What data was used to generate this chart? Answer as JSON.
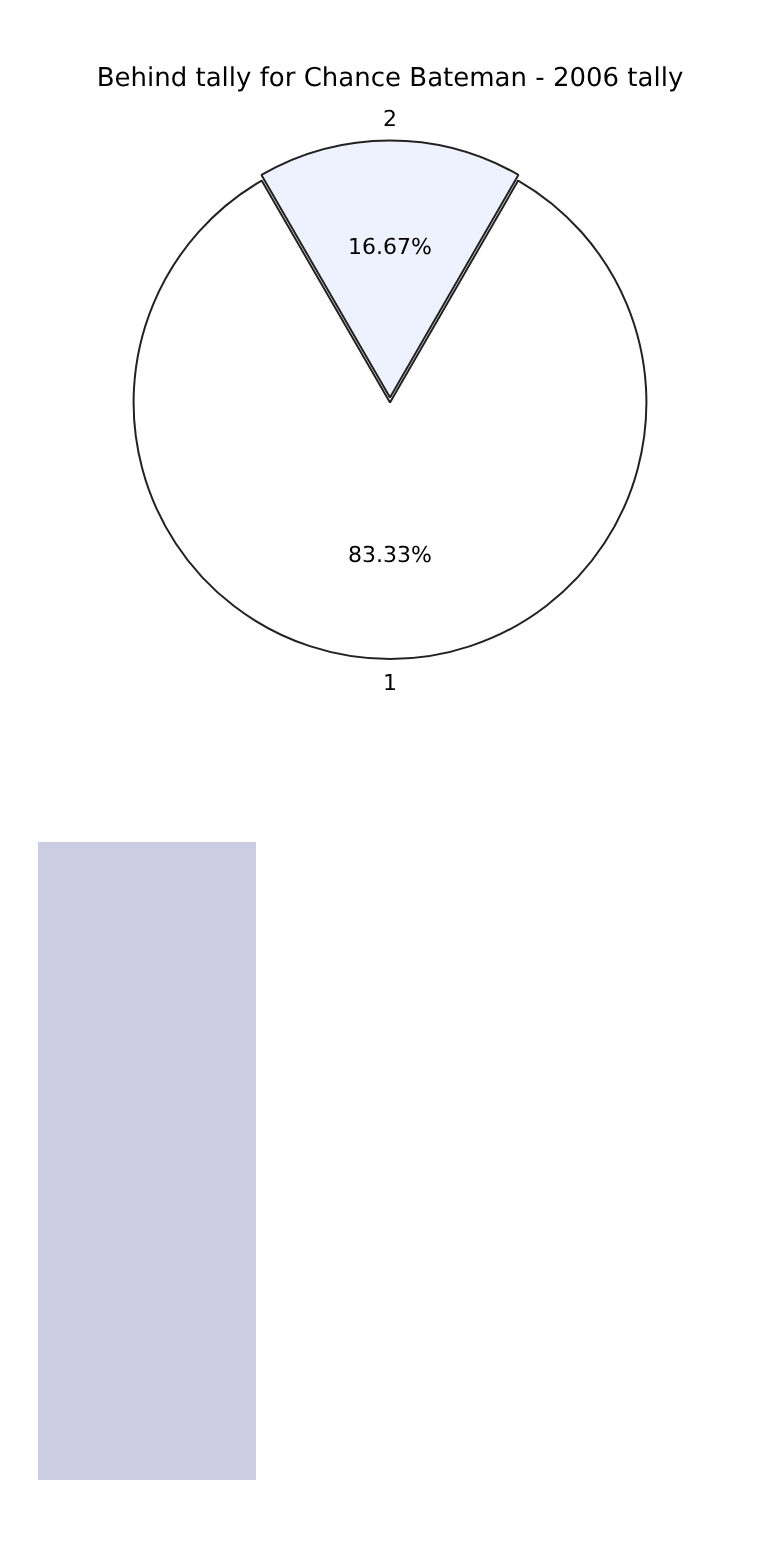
{
  "chart_data": {
    "type": "pie",
    "title": "Behind tally for Chance Bateman - 2006 tally",
    "categories": [
      "1",
      "2"
    ],
    "values": [
      83.33,
      16.67
    ],
    "value_labels": [
      "83.33%",
      "16.67%"
    ],
    "colors": [
      "#ffffff",
      "#eef2fe"
    ],
    "legend": false
  }
}
